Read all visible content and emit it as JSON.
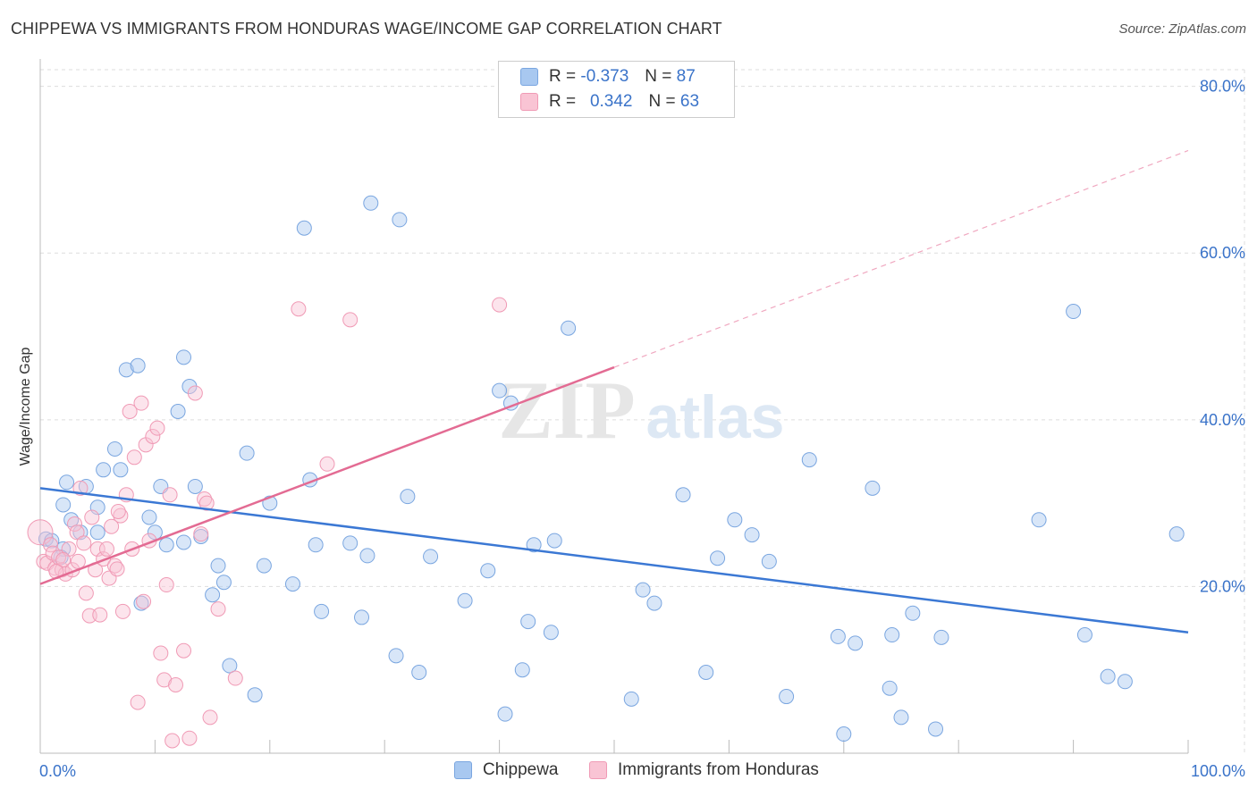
{
  "header": {
    "title": "CHIPPEWA VS IMMIGRANTS FROM HONDURAS WAGE/INCOME GAP CORRELATION CHART",
    "source": "Source: ZipAtlas.com"
  },
  "watermark": {
    "zip": "ZIP",
    "atlas": "atlas"
  },
  "legend_top": {
    "rows": [
      {
        "r_label": "R =",
        "r_value": "-0.373",
        "n_label": "N =",
        "n_value": "87",
        "color": "#a8c8f0",
        "border": "#7aa6e0"
      },
      {
        "r_label": "R =",
        "r_value": "0.342",
        "n_label": "N =",
        "n_value": "63",
        "color": "#f9c4d4",
        "border": "#f09ab5"
      }
    ]
  },
  "legend_bottom": {
    "items": [
      {
        "label": "Chippewa",
        "color": "#a8c8f0",
        "border": "#7aa6e0"
      },
      {
        "label": "Immigrants from Honduras",
        "color": "#f9c4d4",
        "border": "#f09ab5"
      }
    ]
  },
  "chart_data": {
    "type": "scatter",
    "title": "CHIPPEWA VS IMMIGRANTS FROM HONDURAS WAGE/INCOME GAP CORRELATION CHART",
    "xlabel": "",
    "ylabel": "Wage/Income Gap",
    "xlim": [
      0,
      100
    ],
    "ylim": [
      0,
      82
    ],
    "x_tick_labels": [
      "0.0%",
      "100.0%"
    ],
    "y_ticks": [
      20,
      40,
      60,
      80
    ],
    "y_tick_labels": [
      "20.0%",
      "40.0%",
      "60.0%",
      "80.0%"
    ],
    "grid": true,
    "colors": {
      "blue": "#3b78d4",
      "pink": "#e36b93",
      "tick_label": "#3a73c9",
      "grid": "#dddddd"
    },
    "series": [
      {
        "name": "Chippewa",
        "r": -0.373,
        "n": 87,
        "trend": {
          "x0": 0,
          "y0": 31.8,
          "x1": 100,
          "y1": 14.5
        },
        "points": [
          [
            0.5,
            25.7
          ],
          [
            1,
            25.5
          ],
          [
            2,
            29.8
          ],
          [
            2.3,
            32.5
          ],
          [
            2.7,
            28
          ],
          [
            3.5,
            26.5
          ],
          [
            4,
            32
          ],
          [
            5,
            26.5
          ],
          [
            5.5,
            34
          ],
          [
            6.5,
            36.5
          ],
          [
            7,
            34
          ],
          [
            7.5,
            46
          ],
          [
            8.5,
            46.5
          ],
          [
            8.8,
            18
          ],
          [
            9.5,
            28.3
          ],
          [
            10,
            26.5
          ],
          [
            10.5,
            32
          ],
          [
            11,
            25
          ],
          [
            12,
            41
          ],
          [
            12.5,
            47.5
          ],
          [
            13,
            44
          ],
          [
            13.5,
            32
          ],
          [
            14,
            26
          ],
          [
            15,
            19
          ],
          [
            16,
            20.5
          ],
          [
            16.5,
            10.5
          ],
          [
            18,
            36
          ],
          [
            18.7,
            7
          ],
          [
            19.5,
            22.5
          ],
          [
            20,
            30
          ],
          [
            22,
            20.3
          ],
          [
            23,
            63
          ],
          [
            23.5,
            32.8
          ],
          [
            24,
            25
          ],
          [
            24.5,
            17
          ],
          [
            27,
            25.2
          ],
          [
            28,
            16.3
          ],
          [
            28.5,
            23.7
          ],
          [
            28.8,
            66
          ],
          [
            31,
            11.7
          ],
          [
            31.3,
            64
          ],
          [
            32,
            30.8
          ],
          [
            33,
            9.7
          ],
          [
            34,
            23.6
          ],
          [
            37,
            18.3
          ],
          [
            39,
            21.9
          ],
          [
            40,
            43.5
          ],
          [
            40.5,
            4.7
          ],
          [
            41,
            42
          ],
          [
            42.5,
            15.8
          ],
          [
            43,
            25
          ],
          [
            44.5,
            14.5
          ],
          [
            44.8,
            25.5
          ],
          [
            46,
            51
          ],
          [
            51.5,
            6.5
          ],
          [
            52.5,
            19.6
          ],
          [
            53.5,
            18
          ],
          [
            56,
            31
          ],
          [
            58,
            9.7
          ],
          [
            59,
            23.4
          ],
          [
            62,
            26.2
          ],
          [
            63.5,
            23
          ],
          [
            65,
            6.8
          ],
          [
            67,
            35.2
          ],
          [
            69.5,
            14
          ],
          [
            70,
            2.3
          ],
          [
            71,
            13.2
          ],
          [
            72.5,
            31.8
          ],
          [
            74,
            7.8
          ],
          [
            74.2,
            14.2
          ],
          [
            75,
            4.3
          ],
          [
            76,
            16.8
          ],
          [
            78,
            2.9
          ],
          [
            78.5,
            13.9
          ],
          [
            87,
            28
          ],
          [
            90,
            53
          ],
          [
            91,
            14.2
          ],
          [
            93,
            9.2
          ],
          [
            94.5,
            8.6
          ],
          [
            99,
            26.3
          ],
          [
            12.5,
            25.3
          ],
          [
            5,
            29.5
          ],
          [
            15.5,
            22.5
          ],
          [
            42,
            10
          ],
          [
            60.5,
            28
          ],
          [
            2,
            24.5
          ],
          [
            1.8,
            23.5
          ]
        ]
      },
      {
        "name": "Immigrants from Honduras",
        "r": 0.342,
        "n": 63,
        "trend": {
          "x0": 0,
          "y0": 20.3,
          "x1": 50,
          "y1": 46.3
        },
        "trend_ext": {
          "x0": 50,
          "y0": 46.3,
          "x1": 100,
          "y1": 72.3
        },
        "points": [
          [
            0,
            26.5
          ],
          [
            0.3,
            23
          ],
          [
            0.6,
            22.8
          ],
          [
            0.9,
            25
          ],
          [
            1.1,
            24
          ],
          [
            1.3,
            22.2
          ],
          [
            1.6,
            23.5
          ],
          [
            1.9,
            22
          ],
          [
            2.2,
            21.5
          ],
          [
            2.5,
            24.5
          ],
          [
            2.8,
            22
          ],
          [
            3,
            27.5
          ],
          [
            3.2,
            26.5
          ],
          [
            3.5,
            31.8
          ],
          [
            3.8,
            25.2
          ],
          [
            4,
            19.2
          ],
          [
            4.3,
            16.5
          ],
          [
            4.5,
            28.3
          ],
          [
            4.8,
            22
          ],
          [
            5,
            24.5
          ],
          [
            5.2,
            16.6
          ],
          [
            5.5,
            23.3
          ],
          [
            5.8,
            24.5
          ],
          [
            6,
            21
          ],
          [
            6.2,
            27.2
          ],
          [
            6.5,
            22.5
          ],
          [
            6.7,
            22.1
          ],
          [
            7,
            28.5
          ],
          [
            7.2,
            17
          ],
          [
            7.5,
            31
          ],
          [
            7.8,
            41
          ],
          [
            8,
            24.5
          ],
          [
            8.2,
            35.5
          ],
          [
            8.5,
            6.1
          ],
          [
            8.8,
            42
          ],
          [
            9,
            18.2
          ],
          [
            9.2,
            37
          ],
          [
            9.5,
            25.5
          ],
          [
            9.8,
            38
          ],
          [
            10.2,
            39
          ],
          [
            10.5,
            12
          ],
          [
            10.8,
            8.8
          ],
          [
            11,
            20.2
          ],
          [
            11.3,
            31
          ],
          [
            11.5,
            1.5
          ],
          [
            11.8,
            8.2
          ],
          [
            12.5,
            12.3
          ],
          [
            13,
            1.8
          ],
          [
            13.5,
            43.2
          ],
          [
            14,
            26.3
          ],
          [
            14.3,
            30.5
          ],
          [
            14.5,
            30
          ],
          [
            14.8,
            4.3
          ],
          [
            15.5,
            17.3
          ],
          [
            17,
            9
          ],
          [
            22.5,
            53.3
          ],
          [
            25,
            34.7
          ],
          [
            27,
            52
          ],
          [
            40,
            53.8
          ],
          [
            2,
            23.2
          ],
          [
            6.8,
            29
          ],
          [
            3.3,
            23
          ],
          [
            1.4,
            21.8
          ]
        ]
      }
    ]
  }
}
